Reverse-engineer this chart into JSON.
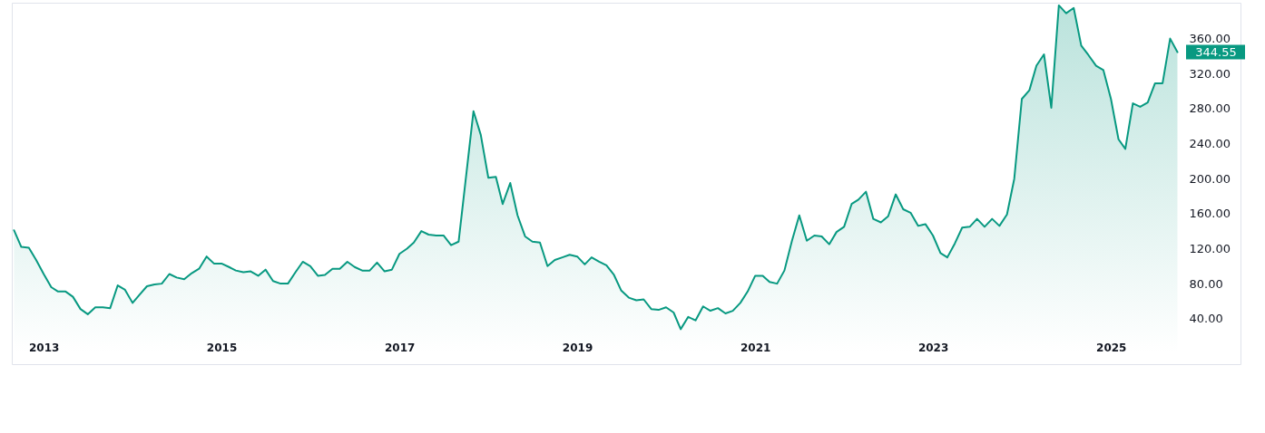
{
  "chart_data": {
    "type": "area",
    "x": [
      "2012-09",
      "2012-10",
      "2012-11",
      "2012-12",
      "2013-01",
      "2013-02",
      "2013-03",
      "2013-04",
      "2013-05",
      "2013-06",
      "2013-07",
      "2013-08",
      "2013-09",
      "2013-10",
      "2013-11",
      "2013-12",
      "2014-01",
      "2014-02",
      "2014-03",
      "2014-04",
      "2014-05",
      "2014-06",
      "2014-07",
      "2014-08",
      "2014-09",
      "2014-10",
      "2014-11",
      "2014-12",
      "2015-01",
      "2015-02",
      "2015-03",
      "2015-04",
      "2015-05",
      "2015-06",
      "2015-07",
      "2015-08",
      "2015-09",
      "2015-10",
      "2015-11",
      "2015-12",
      "2016-01",
      "2016-02",
      "2016-03",
      "2016-04",
      "2016-05",
      "2016-06",
      "2016-07",
      "2016-08",
      "2016-09",
      "2016-10",
      "2016-11",
      "2016-12",
      "2017-01",
      "2017-02",
      "2017-03",
      "2017-04",
      "2017-05",
      "2017-06",
      "2017-07",
      "2017-08",
      "2017-09",
      "2017-11",
      "2017-12",
      "2018-01",
      "2018-02",
      "2018-03",
      "2018-04",
      "2018-05",
      "2018-06",
      "2018-07",
      "2018-08",
      "2018-09",
      "2018-10",
      "2018-11",
      "2018-12",
      "2019-01",
      "2019-02",
      "2019-03",
      "2019-04",
      "2019-05",
      "2019-06",
      "2019-07",
      "2019-08",
      "2019-09",
      "2019-10",
      "2019-11",
      "2019-12",
      "2020-01",
      "2020-02",
      "2020-03",
      "2020-04",
      "2020-05",
      "2020-06",
      "2020-07",
      "2020-08",
      "2020-09",
      "2020-10",
      "2020-11",
      "2020-12",
      "2021-01",
      "2021-02",
      "2021-03",
      "2021-04",
      "2021-05",
      "2021-06",
      "2021-07",
      "2021-08",
      "2021-09",
      "2021-10",
      "2021-11",
      "2021-12",
      "2022-01",
      "2022-02",
      "2022-03",
      "2022-04",
      "2022-05",
      "2022-06",
      "2022-07",
      "2022-08",
      "2022-09",
      "2022-10",
      "2022-11",
      "2022-12",
      "2023-01",
      "2023-02",
      "2023-03",
      "2023-04",
      "2023-05",
      "2023-06",
      "2023-07",
      "2023-08",
      "2023-09",
      "2023-10",
      "2023-11",
      "2023-12",
      "2024-01",
      "2024-02",
      "2024-03",
      "2024-04",
      "2024-05",
      "2024-06",
      "2024-07",
      "2024-08",
      "2024-09",
      "2024-10",
      "2024-11",
      "2024-12",
      "2025-01",
      "2025-02",
      "2025-03",
      "2025-04",
      "2025-05",
      "2025-06",
      "2025-07",
      "2025-08",
      "2025-09",
      "2025-10"
    ],
    "series": [
      {
        "color": "#089981",
        "values": [
          141,
          122,
          121,
          107,
          91,
          76,
          71,
          71,
          65,
          51,
          45,
          53,
          53,
          52,
          78,
          73,
          58,
          68,
          77,
          79,
          80,
          91,
          87,
          85,
          92,
          97,
          111,
          103,
          103,
          99,
          95,
          93,
          94,
          89,
          96,
          83,
          80,
          80,
          93,
          105,
          100,
          89,
          90,
          97,
          97,
          105,
          99,
          95,
          95,
          104,
          94,
          96,
          114,
          120,
          127,
          140,
          136,
          135,
          135,
          124,
          128,
          277,
          250,
          201,
          202,
          171,
          195,
          158,
          134,
          128,
          127,
          100,
          107,
          110,
          113,
          111,
          102,
          110,
          105,
          101,
          90,
          72,
          64,
          61,
          62,
          51,
          50,
          53,
          47,
          28,
          42,
          38,
          54,
          49,
          52,
          46,
          49,
          58,
          71,
          89,
          89,
          82,
          80,
          95,
          129,
          158,
          129,
          135,
          134,
          125,
          139,
          145,
          171,
          176,
          185,
          154,
          150,
          157,
          182,
          165,
          161,
          146,
          148,
          135,
          115,
          110,
          126,
          144,
          145,
          154,
          145,
          154,
          146,
          159,
          200,
          291,
          301,
          329,
          342,
          281,
          398,
          389,
          395,
          352,
          341,
          329,
          324,
          291,
          245,
          234,
          286,
          282,
          287,
          309,
          309,
          360,
          344.55
        ],
        "value_labels": [
          null,
          null,
          null,
          null,
          null,
          null,
          null,
          null,
          null,
          null,
          null,
          null,
          null,
          null,
          null,
          null,
          null,
          null,
          null,
          null,
          null,
          null,
          null,
          null,
          null,
          null,
          null,
          null,
          null,
          null,
          null,
          null,
          null,
          null,
          null,
          null,
          null,
          null,
          null,
          null,
          null,
          null,
          null,
          null,
          null,
          null,
          null,
          null,
          null,
          null,
          null,
          null,
          null,
          null,
          null,
          null,
          null,
          null,
          null,
          null,
          null,
          null,
          null,
          null,
          null,
          null,
          null,
          null,
          null,
          null,
          null,
          null,
          null,
          null,
          null,
          null,
          null,
          null,
          null,
          null,
          null,
          null,
          null,
          null,
          null,
          null,
          null,
          null,
          null,
          null,
          null,
          null,
          null,
          null,
          null,
          null,
          null,
          null,
          null,
          null,
          null,
          null,
          null,
          null,
          null,
          null,
          null,
          null,
          null,
          null,
          null,
          null,
          null,
          null,
          null,
          null,
          null,
          null,
          null,
          null,
          null,
          null,
          null,
          null,
          null,
          null,
          null,
          null,
          null,
          null,
          null,
          null,
          null,
          null,
          null,
          null,
          null,
          null,
          null,
          null,
          null,
          null,
          null,
          null,
          null,
          null,
          null,
          null,
          null,
          null,
          null,
          null,
          null,
          null,
          null,
          null,
          "344.55"
        ]
      }
    ],
    "xlim": [
      "2012-08-23",
      "2026-06-17"
    ],
    "xticks": [
      "2013",
      "2015",
      "2017",
      "2019",
      "2021",
      "2023",
      "2025"
    ],
    "ylim": [
      -12,
      401
    ],
    "yticks": [
      {
        "value": 40,
        "label": "40.00"
      },
      {
        "value": 80,
        "label": "80.00"
      },
      {
        "value": 120,
        "label": "120.00"
      },
      {
        "value": 160,
        "label": "160.00"
      },
      {
        "value": 200,
        "label": "200.00"
      },
      {
        "value": 240,
        "label": "240.00"
      },
      {
        "value": 280,
        "label": "280.00"
      },
      {
        "value": 320,
        "label": "320.00"
      },
      {
        "value": 360,
        "label": "360.00"
      }
    ],
    "grid": false
  }
}
